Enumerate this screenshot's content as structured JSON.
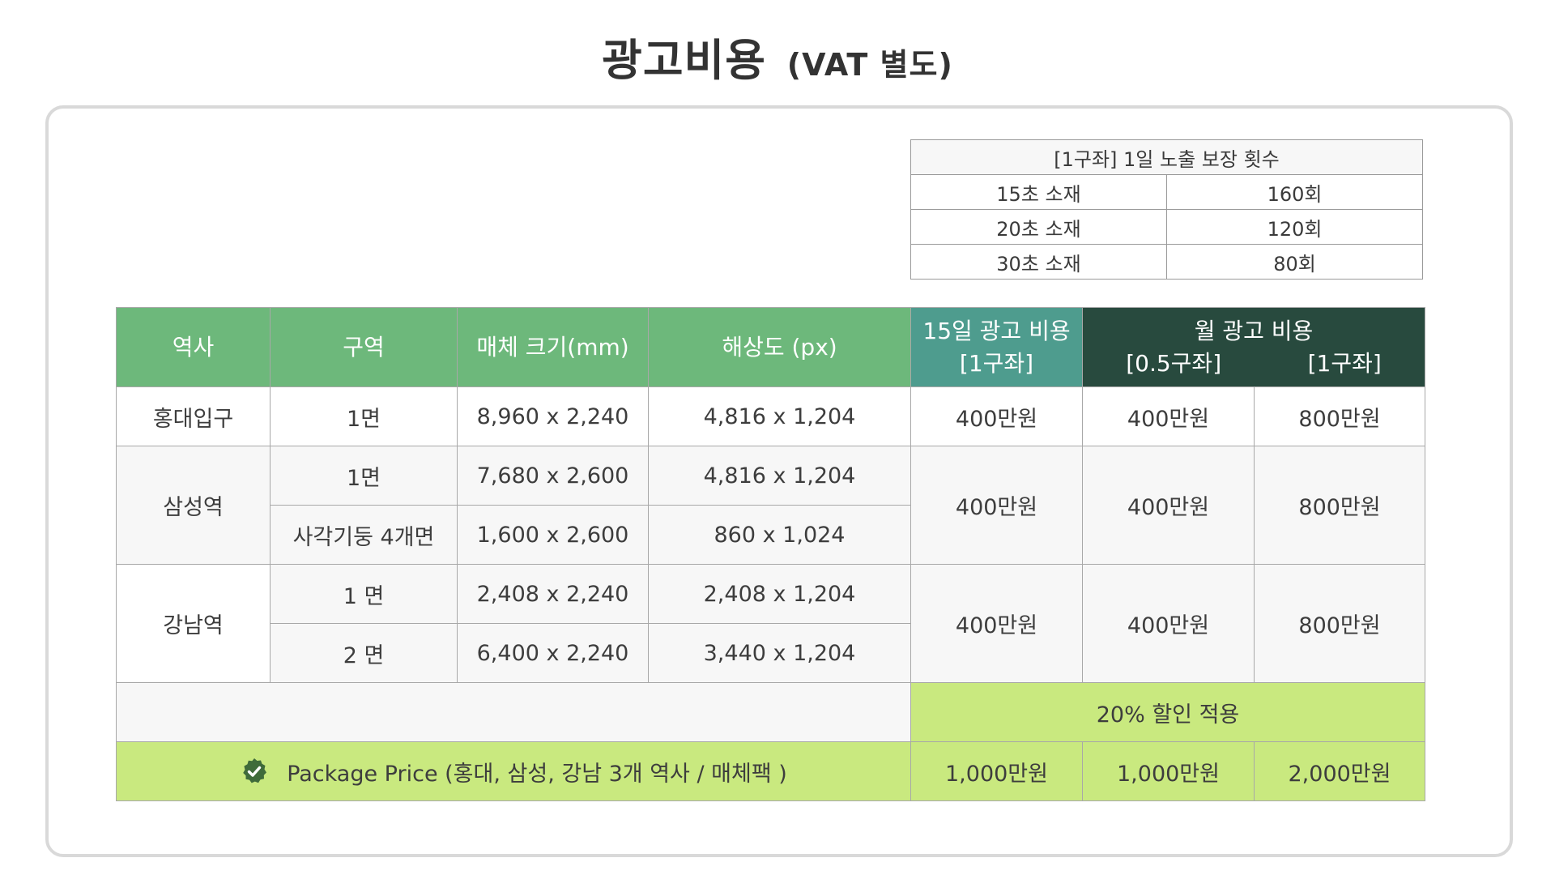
{
  "title": {
    "main": "광고비용",
    "sub": "(VAT 별도)"
  },
  "exposure_table": {
    "header": "[1구좌]  1일 노출 보장 횟수",
    "rows": [
      {
        "material": "15초 소재",
        "count": "160회"
      },
      {
        "material": "20초 소재",
        "count": "120회"
      },
      {
        "material": "30초 소재",
        "count": "80회"
      }
    ]
  },
  "price_table": {
    "headers": {
      "station": "역사",
      "zone": "구역",
      "media_size": "매체 크기(mm)",
      "resolution": "해상도 (px)",
      "fifteen_day_line1": "15일 광고 비용",
      "fifteen_day_line2": "[1구좌]",
      "monthly": "월 광고 비용",
      "monthly_half": "[0.5구좌]",
      "monthly_one": "[1구좌]"
    },
    "hongdae": {
      "station": "홍대입구",
      "zone": "1면",
      "size": "8,960 x 2,240",
      "resolution": "4,816 x 1,204",
      "fifteen_day": "400만원",
      "monthly_half": "400만원",
      "monthly_one": "800만원"
    },
    "samseong": {
      "station": "삼성역",
      "rows": [
        {
          "zone": "1면",
          "size": "7,680 x 2,600",
          "resolution": "4,816 x 1,204"
        },
        {
          "zone": "사각기둥 4개면",
          "size": "1,600 x 2,600",
          "resolution": "860 x 1,024"
        }
      ],
      "fifteen_day": "400만원",
      "monthly_half": "400만원",
      "monthly_one": "800만원"
    },
    "gangnam": {
      "station": "강남역",
      "rows": [
        {
          "zone": "1 면",
          "size": "2,408 x 2,240",
          "resolution": "2,408 x 1,204"
        },
        {
          "zone": "2 면",
          "size": "6,400 x 2,240",
          "resolution": "3,440 x 1,204"
        }
      ],
      "fifteen_day": "400만원",
      "monthly_half": "400만원",
      "monthly_one": "800만원"
    },
    "discount": "20% 할인 적용",
    "package": {
      "label": "Package Price (홍대, 삼성, 강남 3개 역사 / 매체팩 )",
      "fifteen_day": "1,000만원",
      "monthly_half": "1,000만원",
      "monthly_one": "2,000만원"
    }
  },
  "colors": {
    "header_green": "#6db87b",
    "header_teal": "#4e9c8e",
    "header_dark": "#284a3e",
    "highlight_lime": "#c9e97f",
    "check_icon": "#3f6b3a"
  },
  "icons": {
    "package": "check-circle-icon"
  }
}
